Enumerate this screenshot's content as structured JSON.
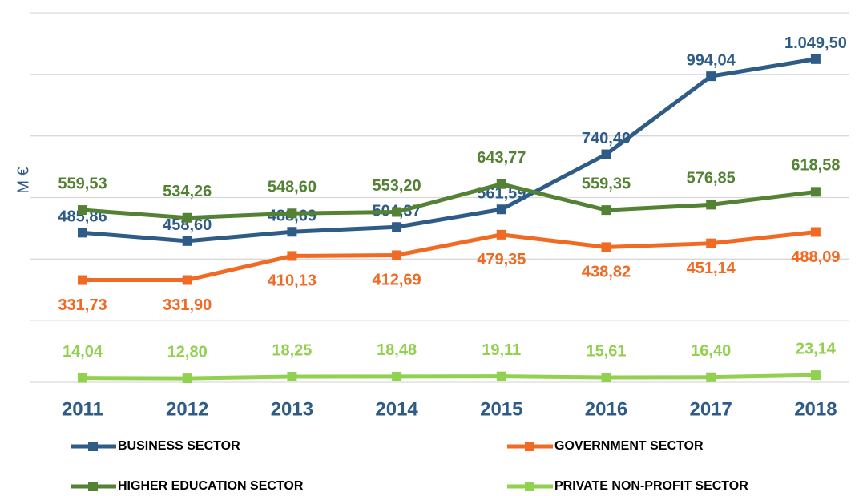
{
  "chart_data": {
    "type": "line",
    "y_label": "M €",
    "categories": [
      "2011",
      "2012",
      "2013",
      "2014",
      "2015",
      "2016",
      "2017",
      "2018"
    ],
    "ylim": [
      0,
      1200
    ],
    "yticks": [
      0,
      200,
      400,
      600,
      800,
      1000,
      1200
    ],
    "grid": true,
    "series": [
      {
        "name": "BUSINESS SECTOR",
        "color": "#2e5c87",
        "values": [
          485.86,
          458.6,
          488.69,
          504.37,
          561.59,
          740.4,
          994.04,
          1049.5
        ],
        "value_labels": [
          "485,86",
          "458,60",
          "488,69",
          "504,37",
          "561,59",
          "740,40",
          "994,04",
          "1.049,50"
        ]
      },
      {
        "name": "GOVERNMENT SECTOR",
        "color": "#f06a24",
        "values": [
          331.73,
          331.9,
          410.13,
          412.69,
          479.35,
          438.82,
          451.14,
          488.09
        ],
        "value_labels": [
          "331,73",
          "331,90",
          "410,13",
          "412,69",
          "479,35",
          "438,82",
          "451,14",
          "488,09"
        ]
      },
      {
        "name": "HIGHER EDUCATION SECTOR",
        "color": "#548235",
        "values": [
          559.53,
          534.26,
          548.6,
          553.2,
          643.77,
          559.35,
          576.85,
          618.58
        ],
        "value_labels": [
          "559,53",
          "534,26",
          "548,60",
          "553,20",
          "643,77",
          "559,35",
          "576,85",
          "618,58"
        ]
      },
      {
        "name": "PRIVATE NON-PROFIT SECTOR",
        "color": "#92d050",
        "values": [
          14.04,
          12.8,
          18.25,
          18.48,
          19.11,
          15.61,
          16.4,
          23.14
        ],
        "value_labels": [
          "14,04",
          "12,80",
          "18,25",
          "18,48",
          "19,11",
          "15,61",
          "16,40",
          "23,14"
        ]
      }
    ]
  }
}
